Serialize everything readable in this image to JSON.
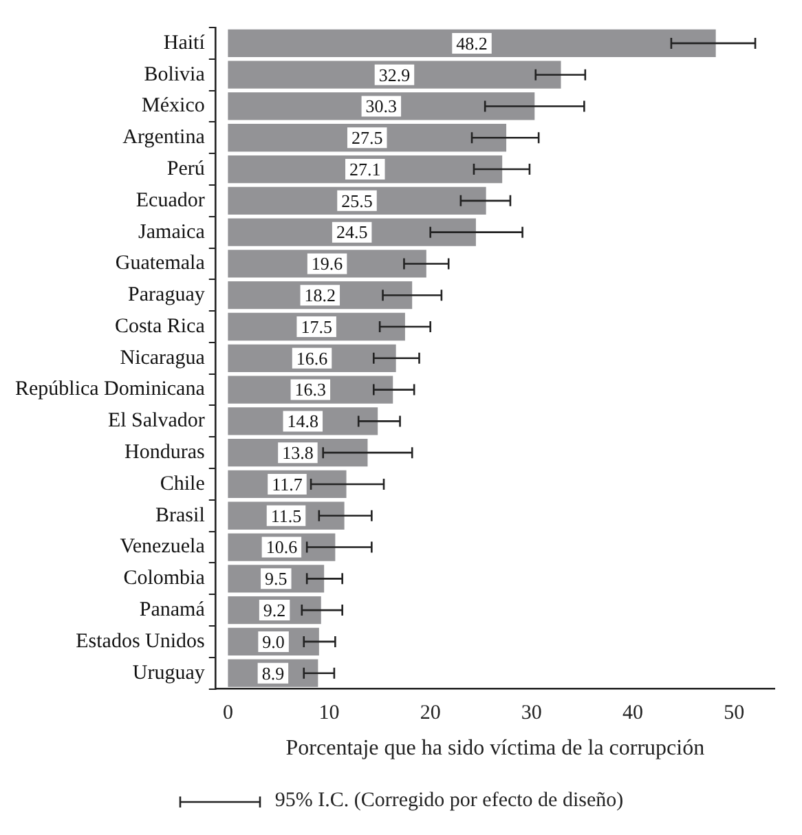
{
  "chart_data": {
    "type": "bar",
    "orientation": "horizontal",
    "xlabel": "Porcentaje que ha sido víctima de la corrupción",
    "categories": [
      "Haití",
      "Bolivia",
      "México",
      "Argentina",
      "Perú",
      "Ecuador",
      "Jamaica",
      "Guatemala",
      "Paraguay",
      "Costa Rica",
      "Nicaragua",
      "República Dominicana",
      "El Salvador",
      "Honduras",
      "Chile",
      "Brasil",
      "Venezuela",
      "Colombia",
      "Panamá",
      "Estados Unidos",
      "Uruguay"
    ],
    "values": [
      48.2,
      32.9,
      30.3,
      27.5,
      27.1,
      25.5,
      24.5,
      19.6,
      18.2,
      17.5,
      16.6,
      16.3,
      14.8,
      13.8,
      11.7,
      11.5,
      10.6,
      9.5,
      9.2,
      9.0,
      8.9
    ],
    "errors": [
      [
        43.8,
        52.1
      ],
      [
        30.4,
        35.3
      ],
      [
        25.4,
        35.2
      ],
      [
        24.1,
        30.7
      ],
      [
        24.3,
        29.8
      ],
      [
        23.0,
        27.9
      ],
      [
        20.0,
        29.1
      ],
      [
        17.4,
        21.8
      ],
      [
        15.3,
        21.1
      ],
      [
        15.0,
        20.0
      ],
      [
        14.4,
        18.9
      ],
      [
        14.4,
        18.4
      ],
      [
        12.9,
        17.0
      ],
      [
        9.4,
        18.2
      ],
      [
        8.2,
        15.4
      ],
      [
        9.0,
        14.2
      ],
      [
        7.8,
        14.2
      ],
      [
        7.8,
        11.3
      ],
      [
        7.3,
        11.3
      ],
      [
        7.5,
        10.6
      ],
      [
        7.5,
        10.5
      ]
    ],
    "value_labels": [
      "48.2",
      "32.9",
      "30.3",
      "27.5",
      "27.1",
      "25.5",
      "24.5",
      "19.6",
      "18.2",
      "17.5",
      "16.6",
      "16.3",
      "14.8",
      "13.8",
      "11.7",
      "11.5",
      "10.6",
      "9.5",
      "9.2",
      "9.0",
      "8.9"
    ],
    "color": "#939396",
    "xlim": [
      -1.2,
      54
    ],
    "xticks": [
      0,
      10,
      20,
      30,
      40,
      50
    ],
    "grid": false,
    "annotations": [
      "95% I.C. (Corregido por efecto de diseño)"
    ]
  }
}
